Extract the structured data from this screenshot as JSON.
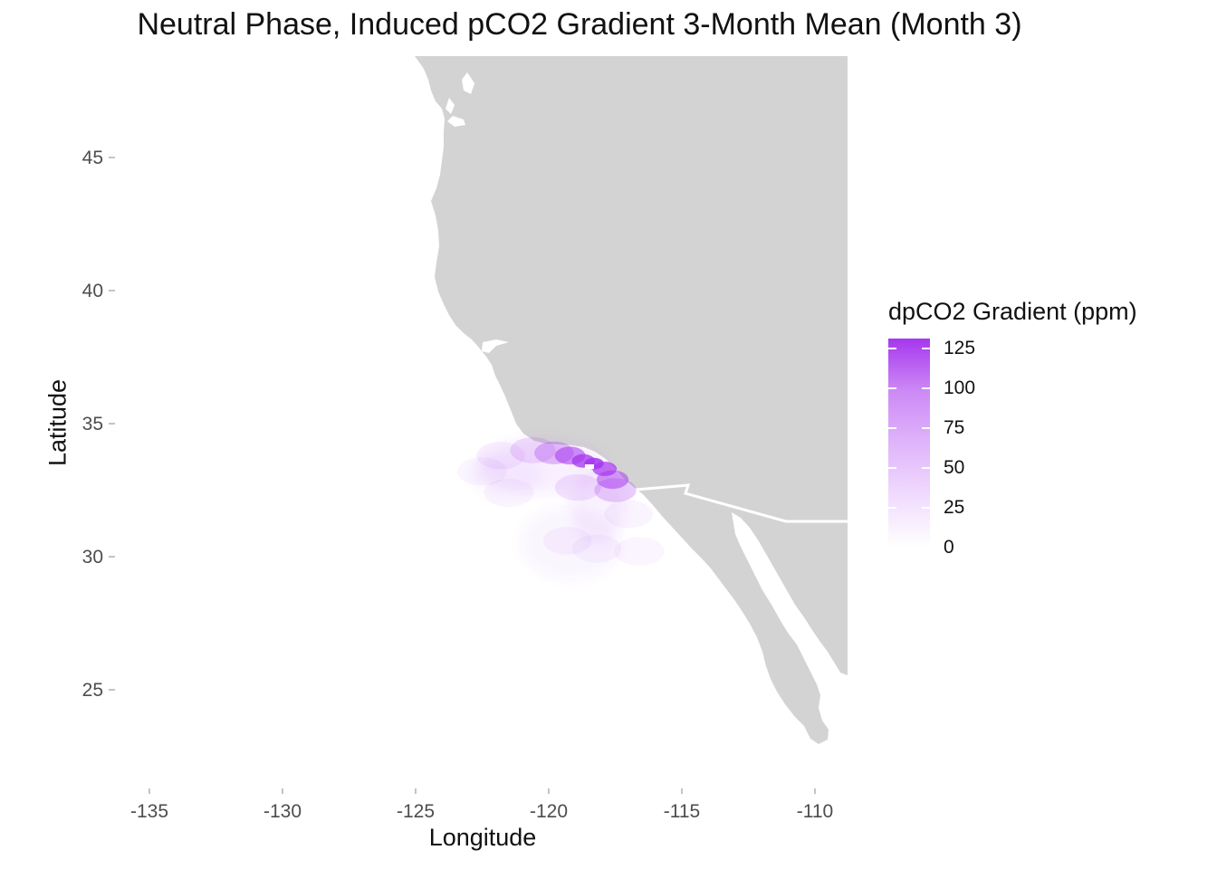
{
  "title": "Neutral Phase, Induced pCO2 Gradient 3-Month Mean (Month 3)",
  "x_axis": {
    "label": "Longitude",
    "ticks": [
      "-135",
      "-130",
      "-125",
      "-120",
      "-115",
      "-110"
    ]
  },
  "y_axis": {
    "label": "Latitude",
    "ticks": [
      "45",
      "40",
      "35",
      "30",
      "25"
    ]
  },
  "legend": {
    "title": "dpCO2 Gradient (ppm)",
    "labels": [
      "125",
      "100",
      "75",
      "50",
      "25",
      "0"
    ],
    "color_low": "#ffffff",
    "color_high": "#a637ee"
  },
  "colors": {
    "land": "#d3d3d3",
    "border": "#ffffff",
    "background": "#ffffff"
  },
  "chart_data": {
    "type": "heatmap",
    "title": "Neutral Phase, Induced pCO2 Gradient 3-Month Mean (Month 3)",
    "xlabel": "Longitude",
    "ylabel": "Latitude",
    "xlim": [
      -136.5,
      -108.8
    ],
    "ylim": [
      21.3,
      48.3
    ],
    "grid": false,
    "legend_position": "right",
    "colorbar": {
      "min": 0,
      "max": 130,
      "ticks": [
        0,
        25,
        50,
        75,
        100,
        125
      ]
    },
    "points": [
      {
        "lon": -118.3,
        "lat": 33.5,
        "value": 125
      },
      {
        "lon": -118.7,
        "lat": 33.6,
        "value": 110
      },
      {
        "lon": -117.9,
        "lat": 33.3,
        "value": 105
      },
      {
        "lon": -119.2,
        "lat": 33.8,
        "value": 80
      },
      {
        "lon": -117.6,
        "lat": 32.9,
        "value": 75
      },
      {
        "lon": -119.8,
        "lat": 33.9,
        "value": 45
      },
      {
        "lon": -117.5,
        "lat": 32.5,
        "value": 35
      },
      {
        "lon": -120.6,
        "lat": 34.0,
        "value": 22
      },
      {
        "lon": -118.9,
        "lat": 32.6,
        "value": 18
      },
      {
        "lon": -121.8,
        "lat": 33.8,
        "value": 10
      },
      {
        "lon": -119.3,
        "lat": 30.6,
        "value": 8
      },
      {
        "lon": -118.2,
        "lat": 30.3,
        "value": 6
      },
      {
        "lon": -117.0,
        "lat": 31.6,
        "value": 8
      },
      {
        "lon": -122.5,
        "lat": 33.2,
        "value": 5
      },
      {
        "lon": -121.5,
        "lat": 32.4,
        "value": 4
      },
      {
        "lon": -116.6,
        "lat": 30.2,
        "value": 3
      }
    ]
  }
}
